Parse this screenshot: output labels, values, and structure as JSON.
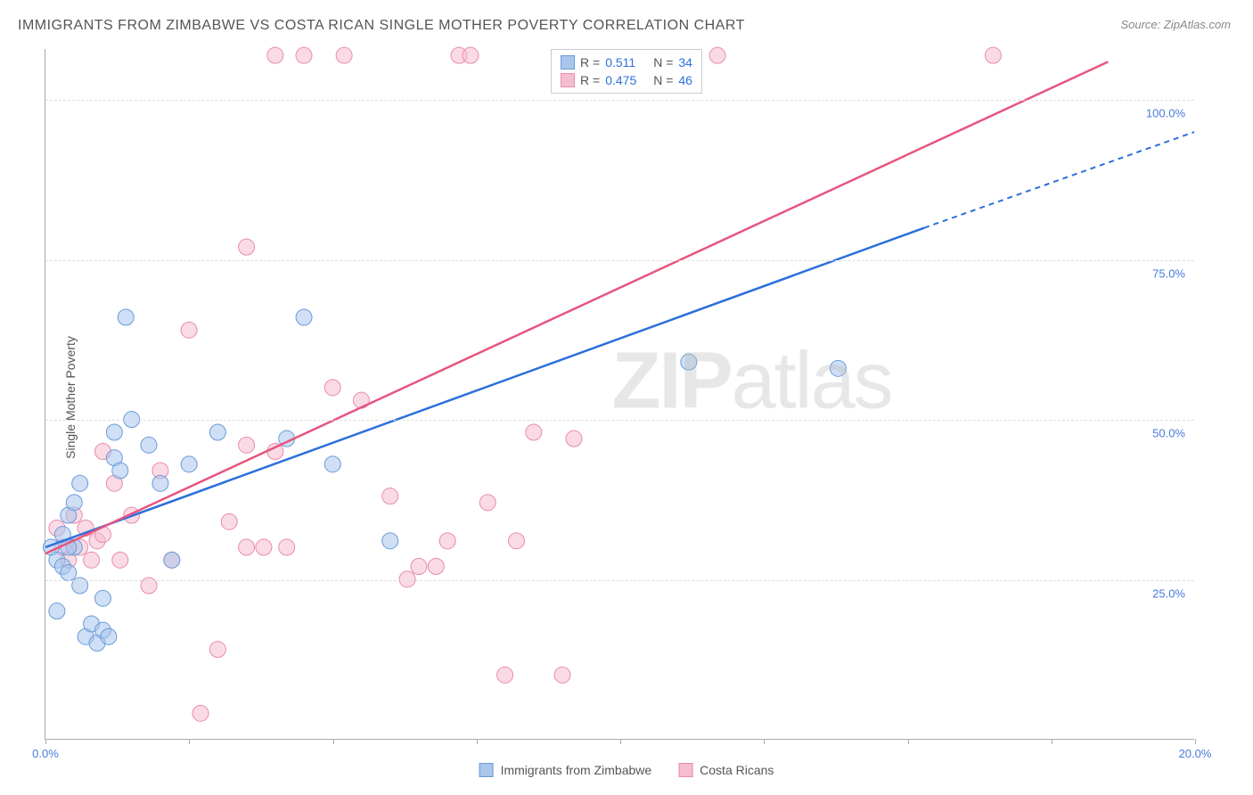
{
  "title": "IMMIGRANTS FROM ZIMBABWE VS COSTA RICAN SINGLE MOTHER POVERTY CORRELATION CHART",
  "source_label": "Source: ZipAtlas.com",
  "y_axis_label": "Single Mother Poverty",
  "watermark": {
    "bold": "ZIP",
    "light": "atlas"
  },
  "chart": {
    "type": "scatter_with_regression",
    "xlim": [
      0,
      20
    ],
    "ylim": [
      0,
      108
    ],
    "x_ticks": [
      0,
      2.5,
      5,
      7.5,
      10,
      12.5,
      15,
      17.5,
      20
    ],
    "x_tick_labels": {
      "0": "0.0%",
      "20": "20.0%"
    },
    "y_gridlines": [
      25,
      50,
      75,
      100
    ],
    "y_tick_labels": {
      "25": "25.0%",
      "50": "50.0%",
      "75": "75.0%",
      "100": "100.0%"
    },
    "grid_color": "#dddddd",
    "axis_color": "#aaaaaa",
    "tick_label_color": "#4a7bd8",
    "marker_radius": 9,
    "marker_opacity": 0.55,
    "series": [
      {
        "name": "Immigrants from Zimbabwe",
        "color_fill": "#a8c5ec",
        "color_stroke": "#6a9bd8",
        "line_color": "#2c6fdb",
        "r": 0.511,
        "n": 34,
        "regression": {
          "x1": 0,
          "y1": 30,
          "x2": 15.3,
          "y2": 80,
          "dashed_x2": 20,
          "dashed_y2": 95
        },
        "points": [
          [
            0.1,
            30
          ],
          [
            0.2,
            28
          ],
          [
            0.3,
            32
          ],
          [
            0.3,
            27
          ],
          [
            0.4,
            35
          ],
          [
            0.4,
            26
          ],
          [
            0.5,
            30
          ],
          [
            0.5,
            37
          ],
          [
            0.6,
            24
          ],
          [
            0.6,
            40
          ],
          [
            0.7,
            16
          ],
          [
            0.8,
            18
          ],
          [
            0.9,
            15
          ],
          [
            1.0,
            17
          ],
          [
            1.0,
            22
          ],
          [
            1.1,
            16
          ],
          [
            1.2,
            44
          ],
          [
            1.2,
            48
          ],
          [
            1.3,
            42
          ],
          [
            1.4,
            66
          ],
          [
            1.5,
            50
          ],
          [
            1.8,
            46
          ],
          [
            2.0,
            40
          ],
          [
            2.2,
            28
          ],
          [
            2.5,
            43
          ],
          [
            3.0,
            48
          ],
          [
            4.2,
            47
          ],
          [
            4.5,
            66
          ],
          [
            5.0,
            43
          ],
          [
            6.0,
            31
          ],
          [
            11.2,
            59
          ],
          [
            13.8,
            58
          ],
          [
            0.2,
            20
          ],
          [
            0.4,
            30
          ]
        ]
      },
      {
        "name": "Costa Ricans",
        "color_fill": "#f5bdd0",
        "color_stroke": "#e88bac",
        "line_color": "#e6557f",
        "r": 0.475,
        "n": 46,
        "regression": {
          "x1": 0,
          "y1": 29,
          "x2": 18.5,
          "y2": 106
        },
        "points": [
          [
            0.2,
            33
          ],
          [
            0.3,
            30
          ],
          [
            0.4,
            28
          ],
          [
            0.5,
            35
          ],
          [
            0.6,
            30
          ],
          [
            0.7,
            33
          ],
          [
            0.8,
            28
          ],
          [
            0.9,
            31
          ],
          [
            1.0,
            32
          ],
          [
            1.0,
            45
          ],
          [
            1.2,
            40
          ],
          [
            1.3,
            28
          ],
          [
            1.5,
            35
          ],
          [
            1.8,
            24
          ],
          [
            2.0,
            42
          ],
          [
            2.2,
            28
          ],
          [
            2.5,
            64
          ],
          [
            2.7,
            4
          ],
          [
            3.0,
            14
          ],
          [
            3.2,
            34
          ],
          [
            3.5,
            46
          ],
          [
            3.5,
            30
          ],
          [
            3.5,
            77
          ],
          [
            3.8,
            30
          ],
          [
            4.0,
            45
          ],
          [
            4.0,
            107
          ],
          [
            4.5,
            107
          ],
          [
            5.0,
            55
          ],
          [
            5.2,
            107
          ],
          [
            5.5,
            53
          ],
          [
            6.0,
            38
          ],
          [
            6.3,
            25
          ],
          [
            6.5,
            27
          ],
          [
            6.8,
            27
          ],
          [
            7.0,
            31
          ],
          [
            7.2,
            107
          ],
          [
            7.4,
            107
          ],
          [
            7.7,
            37
          ],
          [
            8.0,
            10
          ],
          [
            8.2,
            31
          ],
          [
            8.5,
            48
          ],
          [
            9.0,
            10
          ],
          [
            9.2,
            47
          ],
          [
            11.7,
            107
          ],
          [
            16.5,
            107
          ],
          [
            4.2,
            30
          ]
        ]
      }
    ]
  },
  "legend_top": {
    "r_label": "R =",
    "n_label": "N =",
    "label_color": "#555555",
    "value_color": "#2c6fdb"
  },
  "legend_bottom": {
    "items": [
      {
        "label": "Immigrants from Zimbabwe",
        "fill": "#a8c5ec",
        "stroke": "#6a9bd8"
      },
      {
        "label": "Costa Ricans",
        "fill": "#f5bdd0",
        "stroke": "#e88bac"
      }
    ]
  }
}
